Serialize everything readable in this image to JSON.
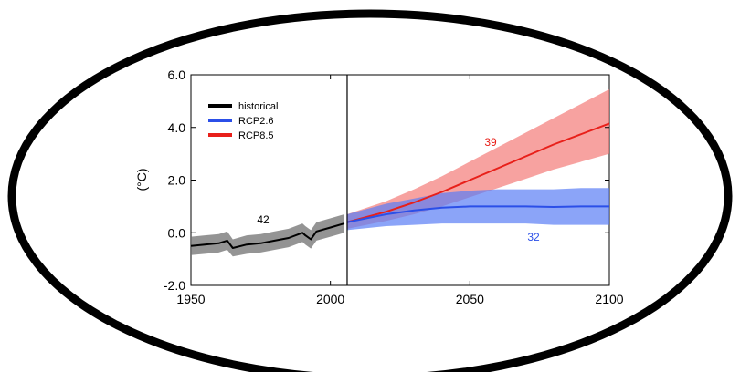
{
  "chart_data": {
    "type": "line",
    "title": "",
    "xlabel": "",
    "ylabel": "(°C)",
    "xlim": [
      1950,
      2100
    ],
    "ylim": [
      -2.0,
      6.0
    ],
    "xticks": [
      "1950",
      "2000",
      "2050",
      "2100"
    ],
    "yticks": [
      "6.0",
      "4.0",
      "2.0",
      "0.0",
      "-2.0"
    ],
    "xtick_values": [
      1950,
      2000,
      2050,
      2100
    ],
    "ytick_values": [
      6,
      4,
      2,
      0,
      -2
    ],
    "divider_year": 2006,
    "legend": {
      "placement": "top-left",
      "entries": [
        {
          "label": "historical",
          "color": "#000000"
        },
        {
          "label": "RCP2.6",
          "color": "#2b4fe8"
        },
        {
          "label": "RCP8.5",
          "color": "#e8201a"
        }
      ]
    },
    "series": [
      {
        "name": "historical",
        "color": "#000000",
        "band_color": "#707070",
        "model_count": "42",
        "x": [
          1950,
          1955,
          1960,
          1963,
          1965,
          1970,
          1975,
          1980,
          1985,
          1990,
          1991,
          1993,
          1995,
          2000,
          2005
        ],
        "y": [
          -0.5,
          -0.45,
          -0.4,
          -0.3,
          -0.58,
          -0.45,
          -0.4,
          -0.3,
          -0.2,
          0.0,
          -0.1,
          -0.25,
          0.05,
          0.2,
          0.35
        ],
        "lower": [
          -0.85,
          -0.8,
          -0.75,
          -0.65,
          -0.9,
          -0.8,
          -0.75,
          -0.65,
          -0.55,
          -0.35,
          -0.45,
          -0.6,
          -0.3,
          -0.15,
          0.0
        ],
        "upper": [
          -0.15,
          -0.1,
          -0.05,
          0.05,
          -0.25,
          -0.1,
          -0.05,
          0.05,
          0.15,
          0.35,
          0.25,
          0.1,
          0.4,
          0.55,
          0.7
        ]
      },
      {
        "name": "RCP2.6",
        "color": "#2b4fe8",
        "band_color": "#5a7ef5",
        "model_count": "32",
        "x": [
          2006,
          2020,
          2030,
          2040,
          2050,
          2060,
          2070,
          2080,
          2090,
          2100
        ],
        "y": [
          0.4,
          0.7,
          0.85,
          0.95,
          1.0,
          1.0,
          1.0,
          0.98,
          1.0,
          1.0
        ],
        "lower": [
          0.1,
          0.25,
          0.3,
          0.35,
          0.35,
          0.35,
          0.35,
          0.3,
          0.3,
          0.3
        ],
        "upper": [
          0.7,
          1.1,
          1.3,
          1.5,
          1.6,
          1.65,
          1.65,
          1.65,
          1.7,
          1.7
        ]
      },
      {
        "name": "RCP8.5",
        "color": "#e8201a",
        "band_color": "#f47a78",
        "model_count": "39",
        "x": [
          2006,
          2020,
          2030,
          2040,
          2050,
          2060,
          2070,
          2080,
          2090,
          2100
        ],
        "y": [
          0.4,
          0.8,
          1.15,
          1.55,
          2.0,
          2.45,
          2.9,
          3.35,
          3.75,
          4.15
        ],
        "lower": [
          0.15,
          0.45,
          0.7,
          1.0,
          1.35,
          1.7,
          2.05,
          2.4,
          2.7,
          3.0
        ],
        "upper": [
          0.7,
          1.2,
          1.65,
          2.15,
          2.7,
          3.25,
          3.8,
          4.35,
          4.9,
          5.45
        ]
      }
    ]
  }
}
